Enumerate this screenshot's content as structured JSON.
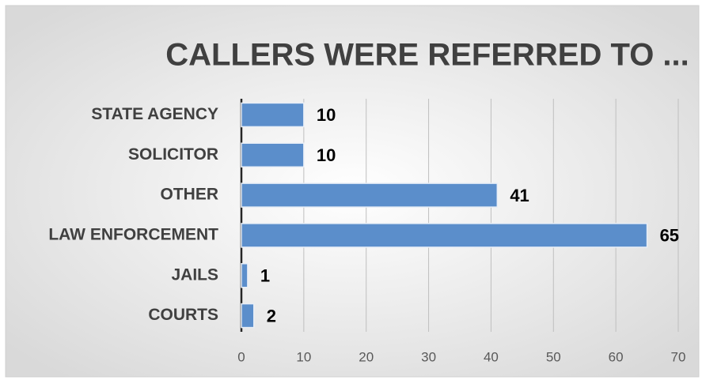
{
  "chart_data": {
    "type": "bar",
    "orientation": "horizontal",
    "title": "CALLERS WERE REFERRED TO ...",
    "categories": [
      "STATE AGENCY",
      "SOLICITOR",
      "OTHER",
      "LAW ENFORCEMENT",
      "JAILS",
      "COURTS"
    ],
    "values": [
      10,
      10,
      41,
      65,
      1,
      2
    ],
    "color": "#5b8ecb",
    "xlim": [
      0,
      70
    ],
    "xticks": [
      0,
      10,
      20,
      30,
      40,
      50,
      60,
      70
    ],
    "grid": true
  }
}
